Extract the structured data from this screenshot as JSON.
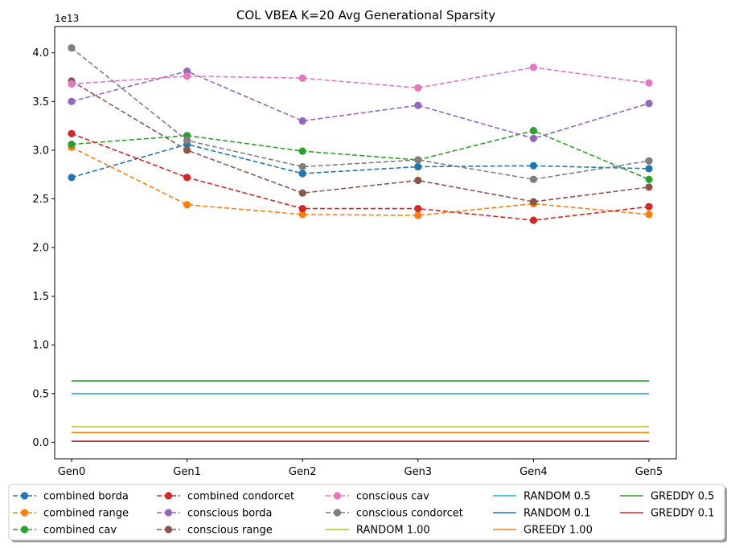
{
  "chart_data": {
    "type": "line",
    "title": "COL VBEA K=20 Avg Generational Sparsity",
    "xlabel": "",
    "ylabel": "",
    "y_multiplier_label": "1e13",
    "categories": [
      "Gen0",
      "Gen1",
      "Gen2",
      "Gen3",
      "Gen4",
      "Gen5"
    ],
    "ylim": [
      -0.17,
      4.27
    ],
    "yticks": [
      0.0,
      0.5,
      1.0,
      1.5,
      2.0,
      2.5,
      3.0,
      3.5,
      4.0
    ],
    "ytick_labels": [
      "0.0",
      "0.5",
      "1.0",
      "1.5",
      "2.0",
      "2.5",
      "3.0",
      "3.5",
      "4.0"
    ],
    "grid": false,
    "legend_position": "bottom-center",
    "series": [
      {
        "name": "combined borda",
        "style": "dashed-marker",
        "color": "#1f77b4",
        "values": [
          2.72,
          3.06,
          2.76,
          2.83,
          2.84,
          2.81
        ]
      },
      {
        "name": "combined range",
        "style": "dashed-marker",
        "color": "#ff7f0e",
        "values": [
          3.03,
          2.44,
          2.34,
          2.33,
          2.45,
          2.34
        ]
      },
      {
        "name": "combined cav",
        "style": "dashed-marker",
        "color": "#2ca02c",
        "values": [
          3.06,
          3.15,
          2.99,
          2.9,
          3.2,
          2.7
        ]
      },
      {
        "name": "combined condorcet",
        "style": "dashed-marker",
        "color": "#d62728",
        "values": [
          3.17,
          2.72,
          2.4,
          2.4,
          2.28,
          2.42
        ]
      },
      {
        "name": "conscious borda",
        "style": "dashed-marker",
        "color": "#9467bd",
        "values": [
          3.5,
          3.81,
          3.3,
          3.46,
          3.12,
          3.48
        ]
      },
      {
        "name": "conscious range",
        "style": "dashed-marker",
        "color": "#8c564b",
        "values": [
          3.71,
          3.0,
          2.56,
          2.69,
          2.47,
          2.62
        ]
      },
      {
        "name": "conscious cav",
        "style": "dashed-marker",
        "color": "#e377c2",
        "values": [
          3.68,
          3.76,
          3.74,
          3.64,
          3.85,
          3.69
        ]
      },
      {
        "name": "conscious condorcet",
        "style": "dashed-marker",
        "color": "#7f7f7f",
        "values": [
          4.05,
          3.1,
          2.83,
          2.9,
          2.7,
          2.89
        ]
      },
      {
        "name": "RANDOM 1.00",
        "style": "solid",
        "color": "#bcbd22",
        "values": [
          0.16,
          0.16,
          0.16,
          0.16,
          0.16,
          0.16
        ]
      },
      {
        "name": "RANDOM 0.5",
        "style": "solid",
        "color": "#17becf",
        "values": [
          0.5,
          0.5,
          0.5,
          0.5,
          0.5,
          0.5
        ]
      },
      {
        "name": "RANDOM 0.1",
        "style": "solid",
        "color": "#1f77b4",
        "values": [
          0.01,
          0.01,
          0.01,
          0.01,
          0.01,
          0.01
        ]
      },
      {
        "name": "GREEDY 1.00",
        "style": "solid",
        "color": "#ff7f0e",
        "values": [
          0.1,
          0.1,
          0.1,
          0.1,
          0.1,
          0.1
        ]
      },
      {
        "name": "GREDDY 0.5",
        "style": "solid",
        "color": "#2ca02c",
        "values": [
          0.63,
          0.63,
          0.63,
          0.63,
          0.63,
          0.63
        ]
      },
      {
        "name": "GREDDY 0.1",
        "style": "solid",
        "color": "#d62728",
        "values": [
          0.01,
          0.01,
          0.01,
          0.01,
          0.01,
          0.01
        ]
      }
    ],
    "legend_order": [
      0,
      1,
      2,
      3,
      4,
      5,
      6,
      7,
      8,
      9,
      10,
      11,
      12,
      13
    ]
  }
}
